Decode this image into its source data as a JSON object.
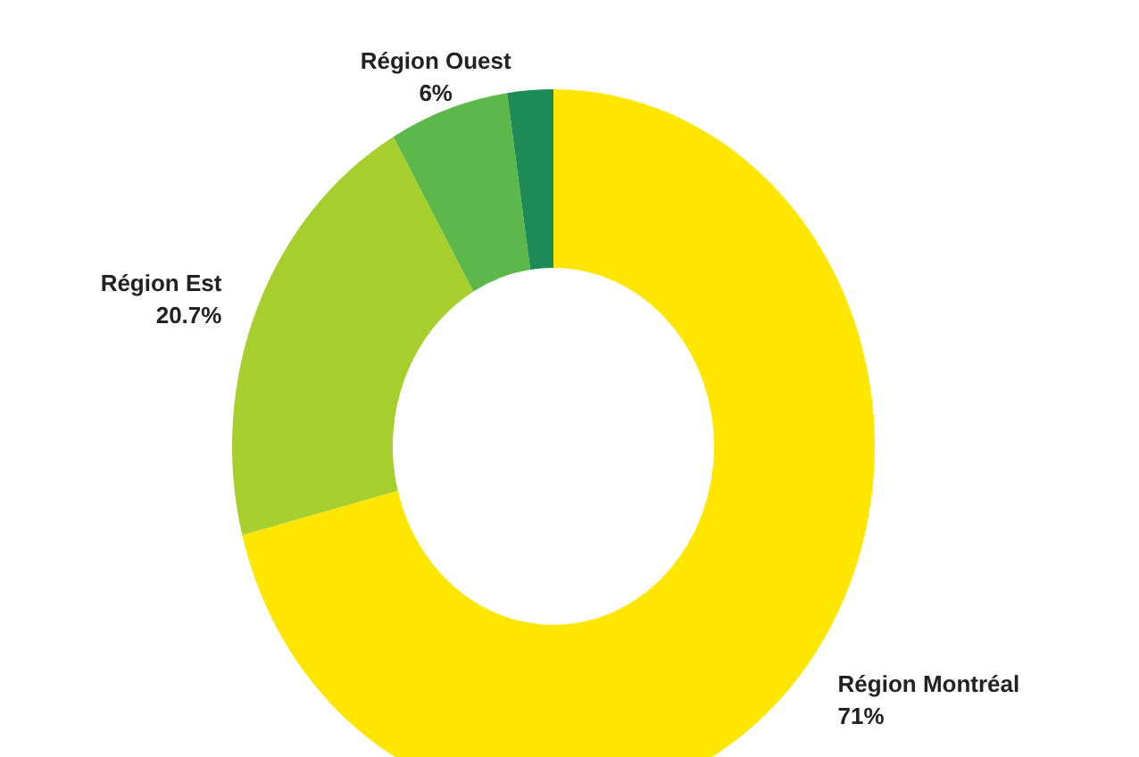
{
  "chart_data": {
    "type": "donut",
    "categories": [
      "Région Montréal",
      "Région Est",
      "Région Ouest",
      null
    ],
    "values": [
      71,
      20.7,
      6,
      2.3
    ],
    "colors": [
      "#ffe600",
      "#a6cf2e",
      "#5cb84a",
      "#1e8a55"
    ],
    "value_labels": [
      "71%",
      "20.7%",
      "6%",
      null
    ]
  }
}
